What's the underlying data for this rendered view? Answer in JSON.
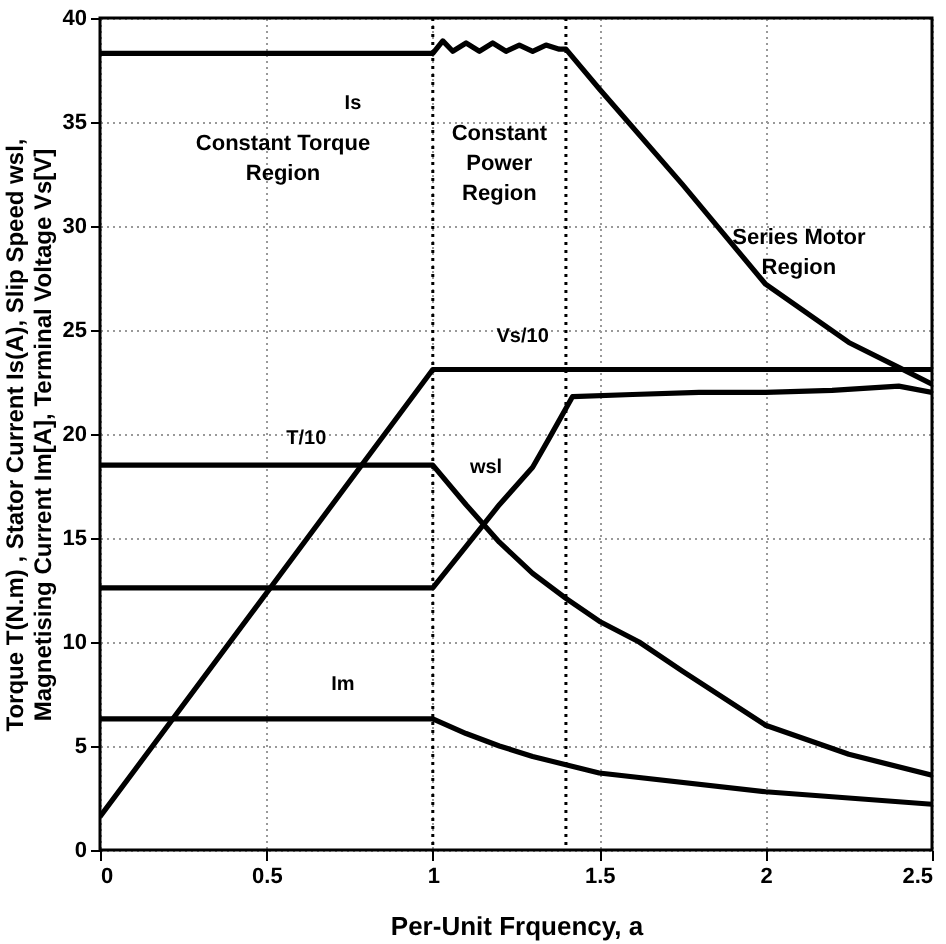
{
  "chart_data": {
    "type": "line",
    "xlabel": "Per-Unit Frquency, a",
    "ylabel": "Torque T(N.m) , Stator Current Is(A), Slip Speed wsl,\nMagnetising Current Im[A], Terminal Voltage Vs[V]",
    "xlim": [
      0,
      2.5
    ],
    "ylim": [
      0,
      40
    ],
    "xticks": [
      0,
      0.5,
      1,
      1.5,
      2,
      2.5
    ],
    "yticks": [
      0,
      5,
      10,
      15,
      20,
      25,
      30,
      35,
      40
    ],
    "grid": true,
    "marker": "none",
    "line_style": "solid",
    "annotations": [
      "Constant Torque\nRegion",
      "Constant\nPower\nRegion",
      "Series Motor\nRegion"
    ],
    "ref_lines": [
      {
        "axis": "x",
        "value": 1,
        "line_style": "dotted",
        "color": "#000000"
      },
      {
        "axis": "x",
        "value": 1.4,
        "line_style": "dotted",
        "color": "#000000"
      }
    ],
    "series": [
      {
        "name": "Is",
        "color": "#000000",
        "x": [
          0,
          1,
          1.03,
          1.06,
          1.1,
          1.14,
          1.18,
          1.22,
          1.26,
          1.3,
          1.34,
          1.38,
          1.4,
          1.5,
          1.75,
          2,
          2.25,
          2.4,
          2.5
        ],
        "values": [
          38.3,
          38.3,
          38.9,
          38.4,
          38.8,
          38.4,
          38.8,
          38.4,
          38.7,
          38.4,
          38.7,
          38.5,
          38.5,
          36.6,
          32,
          27.2,
          24.4,
          23.2,
          22.4
        ]
      },
      {
        "name": "Vs/10",
        "color": "#000000",
        "x": [
          0,
          1,
          2.5
        ],
        "values": [
          1.6,
          23.1,
          23.1
        ]
      },
      {
        "name": "T/10",
        "color": "#000000",
        "x": [
          0,
          1,
          1.1,
          1.2,
          1.3,
          1.4,
          1.5,
          1.62,
          1.75,
          2,
          2.25,
          2.5
        ],
        "values": [
          18.5,
          18.5,
          16.6,
          14.8,
          13.3,
          12.1,
          11,
          10,
          8.6,
          6,
          4.6,
          3.6
        ]
      },
      {
        "name": "wsl",
        "color": "#000000",
        "x": [
          0,
          1,
          1.1,
          1.2,
          1.3,
          1.35,
          1.42,
          1.6,
          1.8,
          2,
          2.2,
          2.4,
          2.5
        ],
        "values": [
          12.6,
          12.6,
          14.6,
          16.6,
          18.4,
          19.8,
          21.8,
          21.9,
          22,
          22,
          22.1,
          22.3,
          22
        ]
      },
      {
        "name": "Im",
        "color": "#000000",
        "x": [
          0,
          1,
          1.1,
          1.2,
          1.3,
          1.4,
          1.5,
          2,
          2.5
        ],
        "values": [
          6.3,
          6.3,
          5.6,
          5,
          4.5,
          4.1,
          3.7,
          2.8,
          2.2
        ]
      }
    ]
  }
}
